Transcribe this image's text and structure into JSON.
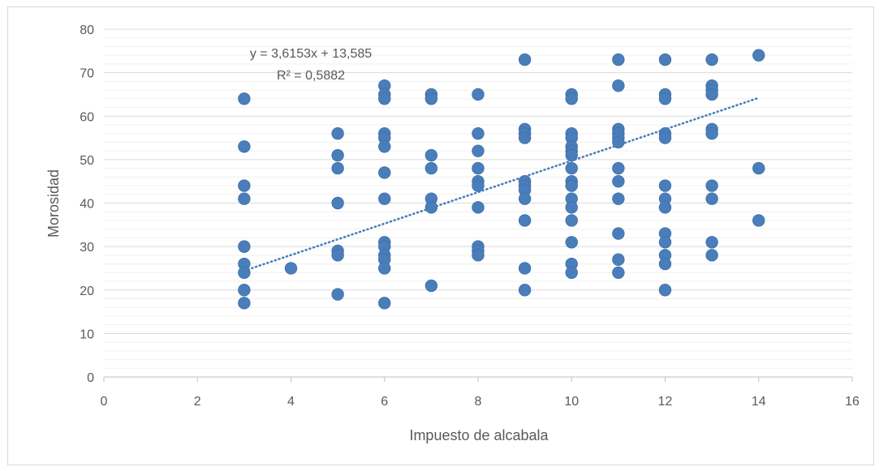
{
  "chart_data": {
    "type": "scatter",
    "title": "",
    "xlabel": "Impuesto de alcabala",
    "ylabel": "Morosidad",
    "xlim": [
      0,
      16
    ],
    "ylim": [
      0,
      80
    ],
    "x_ticks": [
      "0",
      "2",
      "4",
      "6",
      "8",
      "10",
      "12",
      "14",
      "16"
    ],
    "y_ticks": [
      "0",
      "10",
      "20",
      "30",
      "40",
      "50",
      "60",
      "70",
      "80"
    ],
    "grid": "horizontal major and minor",
    "legend": "none",
    "marker_color": "#4a7ebb",
    "trendline_color": "#4a7ebb",
    "trendline": {
      "type": "linear",
      "slope": 3.6153,
      "intercept": 13.585,
      "x_range": [
        3,
        14
      ],
      "equation_label": "y = 3,6153x + 13,585",
      "r2_label": "R² = 0,5882"
    },
    "points": [
      [
        3,
        64
      ],
      [
        3,
        53
      ],
      [
        3,
        44
      ],
      [
        3,
        41
      ],
      [
        3,
        30
      ],
      [
        3,
        26
      ],
      [
        3,
        24
      ],
      [
        3,
        20
      ],
      [
        3,
        17
      ],
      [
        4,
        25
      ],
      [
        5,
        56
      ],
      [
        5,
        51
      ],
      [
        5,
        48
      ],
      [
        5,
        40
      ],
      [
        5,
        29
      ],
      [
        5,
        28
      ],
      [
        5,
        19
      ],
      [
        6,
        67
      ],
      [
        6,
        65
      ],
      [
        6,
        64
      ],
      [
        6,
        56
      ],
      [
        6,
        55
      ],
      [
        6,
        53
      ],
      [
        6,
        47
      ],
      [
        6,
        41
      ],
      [
        6,
        31
      ],
      [
        6,
        30
      ],
      [
        6,
        28
      ],
      [
        6,
        27
      ],
      [
        6,
        25
      ],
      [
        6,
        17
      ],
      [
        7,
        65
      ],
      [
        7,
        64
      ],
      [
        7,
        51
      ],
      [
        7,
        48
      ],
      [
        7,
        41
      ],
      [
        7,
        39
      ],
      [
        7,
        21
      ],
      [
        8,
        65
      ],
      [
        8,
        56
      ],
      [
        8,
        52
      ],
      [
        8,
        48
      ],
      [
        8,
        45
      ],
      [
        8,
        44
      ],
      [
        8,
        39
      ],
      [
        8,
        30
      ],
      [
        8,
        29
      ],
      [
        8,
        28
      ],
      [
        9,
        73
      ],
      [
        9,
        57
      ],
      [
        9,
        56
      ],
      [
        9,
        55
      ],
      [
        9,
        45
      ],
      [
        9,
        44
      ],
      [
        9,
        43
      ],
      [
        9,
        41
      ],
      [
        9,
        36
      ],
      [
        9,
        25
      ],
      [
        9,
        20
      ],
      [
        10,
        65
      ],
      [
        10,
        64
      ],
      [
        10,
        56
      ],
      [
        10,
        55
      ],
      [
        10,
        53
      ],
      [
        10,
        52
      ],
      [
        10,
        51
      ],
      [
        10,
        48
      ],
      [
        10,
        45
      ],
      [
        10,
        44
      ],
      [
        10,
        41
      ],
      [
        10,
        39
      ],
      [
        10,
        36
      ],
      [
        10,
        31
      ],
      [
        10,
        26
      ],
      [
        10,
        24
      ],
      [
        11,
        73
      ],
      [
        11,
        67
      ],
      [
        11,
        57
      ],
      [
        11,
        56
      ],
      [
        11,
        55
      ],
      [
        11,
        54
      ],
      [
        11,
        48
      ],
      [
        11,
        45
      ],
      [
        11,
        41
      ],
      [
        11,
        33
      ],
      [
        11,
        27
      ],
      [
        11,
        24
      ],
      [
        12,
        73
      ],
      [
        12,
        65
      ],
      [
        12,
        64
      ],
      [
        12,
        56
      ],
      [
        12,
        55
      ],
      [
        12,
        44
      ],
      [
        12,
        41
      ],
      [
        12,
        39
      ],
      [
        12,
        33
      ],
      [
        12,
        31
      ],
      [
        12,
        28
      ],
      [
        12,
        26
      ],
      [
        12,
        20
      ],
      [
        13,
        73
      ],
      [
        13,
        67
      ],
      [
        13,
        66
      ],
      [
        13,
        65
      ],
      [
        13,
        57
      ],
      [
        13,
        56
      ],
      [
        13,
        44
      ],
      [
        13,
        41
      ],
      [
        13,
        31
      ],
      [
        13,
        28
      ],
      [
        14,
        74
      ],
      [
        14,
        48
      ],
      [
        14,
        36
      ]
    ]
  }
}
